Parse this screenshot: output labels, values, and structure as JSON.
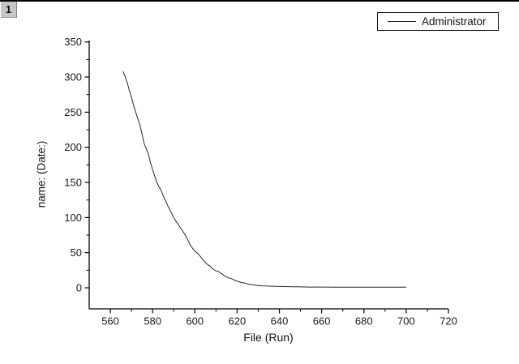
{
  "layer_button": {
    "label": "1"
  },
  "chart_data": {
    "type": "line",
    "title": "",
    "xlabel": "File (Run)",
    "ylabel": "name: (Date:)",
    "xlim": [
      550,
      720
    ],
    "ylim": [
      -30,
      352
    ],
    "xticks": [
      560,
      580,
      600,
      620,
      640,
      660,
      680,
      700,
      720
    ],
    "yticks": [
      0,
      50,
      100,
      150,
      200,
      250,
      300,
      350
    ],
    "x_minor_step": 10,
    "y_minor_step": 25,
    "grid": false,
    "axis_color": "#000000",
    "tick_label_color": "#1a1a1a",
    "legend": {
      "position": "top-right",
      "border": true
    },
    "series": [
      {
        "name": "Administrator",
        "color": "#242424",
        "points": [
          [
            566,
            308
          ],
          [
            567,
            301
          ],
          [
            568,
            292
          ],
          [
            569,
            281
          ],
          [
            570,
            271
          ],
          [
            571,
            260
          ],
          [
            572,
            250
          ],
          [
            573,
            241
          ],
          [
            574,
            232
          ],
          [
            575,
            219
          ],
          [
            576,
            205
          ],
          [
            577,
            198
          ],
          [
            578,
            190
          ],
          [
            579,
            178
          ],
          [
            580,
            168
          ],
          [
            581,
            159
          ],
          [
            582,
            150
          ],
          [
            583,
            144
          ],
          [
            584,
            139
          ],
          [
            585,
            131
          ],
          [
            586,
            125
          ],
          [
            587,
            118
          ],
          [
            588,
            112
          ],
          [
            589,
            106
          ],
          [
            590,
            100
          ],
          [
            591,
            95
          ],
          [
            592,
            91
          ],
          [
            593,
            86
          ],
          [
            594,
            82
          ],
          [
            595,
            77
          ],
          [
            596,
            72
          ],
          [
            597,
            66
          ],
          [
            598,
            60
          ],
          [
            599,
            56
          ],
          [
            600,
            52
          ],
          [
            601,
            50
          ],
          [
            602,
            47
          ],
          [
            603,
            43
          ],
          [
            604,
            39
          ],
          [
            605,
            36
          ],
          [
            606,
            33
          ],
          [
            607,
            31.5
          ],
          [
            608,
            28
          ],
          [
            609,
            26
          ],
          [
            610,
            24
          ],
          [
            611,
            23.5
          ],
          [
            612,
            21
          ],
          [
            613,
            19.5
          ],
          [
            614,
            17
          ],
          [
            615,
            15.5
          ],
          [
            616,
            14
          ],
          [
            617,
            13.5
          ],
          [
            618,
            12
          ],
          [
            619,
            10.5
          ],
          [
            620,
            9.5
          ],
          [
            621,
            8.5
          ],
          [
            622,
            7.5
          ],
          [
            623,
            7
          ],
          [
            624,
            6.5
          ],
          [
            625,
            5.5
          ],
          [
            626,
            5
          ],
          [
            627,
            4.5
          ],
          [
            628,
            4
          ],
          [
            629,
            3.6
          ],
          [
            630,
            3.2
          ],
          [
            632,
            2.8
          ],
          [
            634,
            2.5
          ],
          [
            636,
            2.2
          ],
          [
            638,
            2
          ],
          [
            640,
            1.9
          ],
          [
            643,
            1.7
          ],
          [
            646,
            1.5
          ],
          [
            649,
            1.4
          ],
          [
            652,
            1.2
          ],
          [
            655,
            1.1
          ],
          [
            658,
            1
          ],
          [
            662,
            1
          ],
          [
            666,
            0.9
          ],
          [
            670,
            0.9
          ],
          [
            675,
            0.8
          ],
          [
            680,
            0.8
          ],
          [
            685,
            0.8
          ],
          [
            690,
            0.8
          ],
          [
            695,
            0.8
          ],
          [
            700,
            0.8
          ]
        ]
      }
    ]
  }
}
